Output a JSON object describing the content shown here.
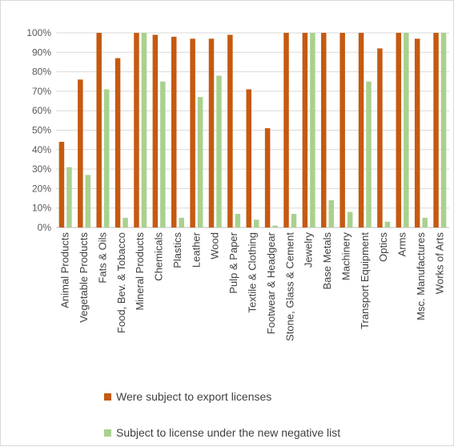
{
  "chart_data": {
    "type": "bar",
    "title": "",
    "xlabel": "",
    "ylabel": "",
    "ylim": [
      0,
      100
    ],
    "y_ticks": [
      "0%",
      "10%",
      "20%",
      "30%",
      "40%",
      "50%",
      "60%",
      "70%",
      "80%",
      "90%",
      "100%"
    ],
    "grid": true,
    "legend_position": "bottom",
    "categories": [
      "Animal Products",
      "Vegetable Products",
      "Fats & Oils",
      "Food, Bev. & Tobacco",
      "Mineral Products",
      "Chemicals",
      "Plastics",
      "Leather",
      "Wood",
      "Pulp & Paper",
      "Textile & Clothing",
      "Footwear & Headgear",
      "Stone, Glass & Cement",
      "Jewelry",
      "Base Metals",
      "Machinery",
      "Transport Equipment",
      "Optics",
      "Arms",
      "Msc. Manufactures",
      "Works of Arts"
    ],
    "series": [
      {
        "name": "Were subject to export licenses",
        "color": "#c55a11",
        "values": [
          44,
          76,
          100,
          87,
          100,
          99,
          98,
          97,
          97,
          99,
          71,
          51,
          100,
          100,
          100,
          100,
          100,
          92,
          100,
          97,
          100
        ]
      },
      {
        "name": "Subject to license under the new negative list",
        "color": "#a9d18e",
        "values": [
          31,
          27,
          71,
          5,
          100,
          75,
          5,
          67,
          78,
          7,
          4,
          1,
          7,
          100,
          14,
          8,
          75,
          3,
          100,
          5,
          100
        ]
      }
    ]
  }
}
